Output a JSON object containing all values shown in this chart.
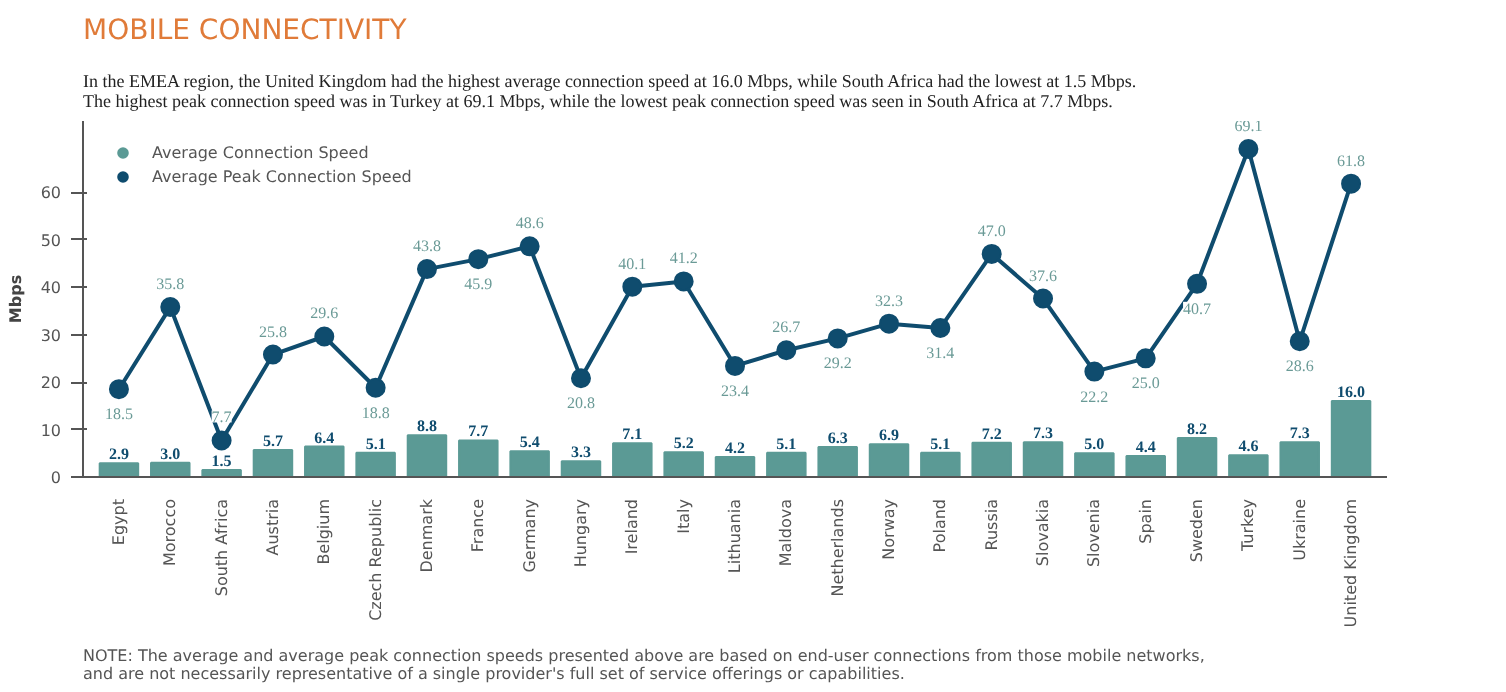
{
  "chart_data": {
    "type": "bar",
    "title": "MOBILE CONNECTIVITY",
    "subtitle": "In the EMEA region, the United Kingdom had the highest average connection speed at 16.0 Mbps, while South Africa had the lowest at 1.5 Mbps.\nThe highest peak connection speed was in Turkey at 69.1 Mbps, while the lowest peak connection speed was seen in South Africa at 7.7 Mbps.",
    "ylabel": "Mbps",
    "categories": [
      "Egypt",
      "Morocco",
      "South Africa",
      "Austria",
      "Belgium",
      "Czech Republic",
      "Denmark",
      "France",
      "Germany",
      "Hungary",
      "Ireland",
      "Italy",
      "Lithuania",
      "Maldova",
      "Netherlands",
      "Norway",
      "Poland",
      "Russia",
      "Slovakia",
      "Slovenia",
      "Spain",
      "Sweden",
      "Turkey",
      "Ukraine",
      "United Kingdom"
    ],
    "series": [
      {
        "name": "Average Connection Speed",
        "color": "#5b9a95",
        "values": [
          2.9,
          3.0,
          1.5,
          5.7,
          6.4,
          5.1,
          8.8,
          7.7,
          5.4,
          3.3,
          7.1,
          5.2,
          4.2,
          5.1,
          6.3,
          6.9,
          5.1,
          7.2,
          7.3,
          5.0,
          4.4,
          8.2,
          4.6,
          7.3,
          16.0
        ],
        "value_labels": [
          "2.9",
          "3.0",
          "1.5",
          "5.7",
          "6.4",
          "5.1",
          "8.8",
          "7.7",
          "5.4",
          "3.3",
          "7.1",
          "5.2",
          "4.2",
          "5.1",
          "6.3",
          "6.9",
          "5.1",
          "7.2",
          "7.3",
          "5.0",
          "4.4",
          "8.2",
          "4.6",
          "7.3",
          "16.0"
        ]
      },
      {
        "name": "Average Peak Connection Speed",
        "type": "line",
        "color": "#0f4c6e",
        "values": [
          18.5,
          35.8,
          7.7,
          25.8,
          29.6,
          18.8,
          43.8,
          45.9,
          48.6,
          20.8,
          40.1,
          41.2,
          23.4,
          26.7,
          29.2,
          32.3,
          31.4,
          47.0,
          37.6,
          22.2,
          25.0,
          40.7,
          69.1,
          28.6,
          61.8
        ],
        "value_labels": [
          "18.5",
          "35.8",
          "7.7",
          "25.8",
          "29.6",
          "18.8",
          "43.8",
          "45.9",
          "48.6",
          "20.8",
          "40.1",
          "41.2",
          "23.4",
          "26.7",
          "29.2",
          "32.3",
          "31.4",
          "47.0",
          "37.6",
          "22.2",
          "25.0",
          "40.7",
          "69.1",
          "28.6",
          "61.8"
        ]
      }
    ],
    "ylim": [
      0,
      75
    ],
    "yticks": [
      0,
      10,
      20,
      30,
      40,
      50,
      60
    ],
    "grid": false,
    "legend": "top left",
    "marker": "circle",
    "annotations": [
      "NOTE: The average and average peak connection speeds presented above are based on end-user connections from those mobile networks,\nand are not necessarily representative of a single provider's full set of service offerings or capabilities."
    ]
  }
}
